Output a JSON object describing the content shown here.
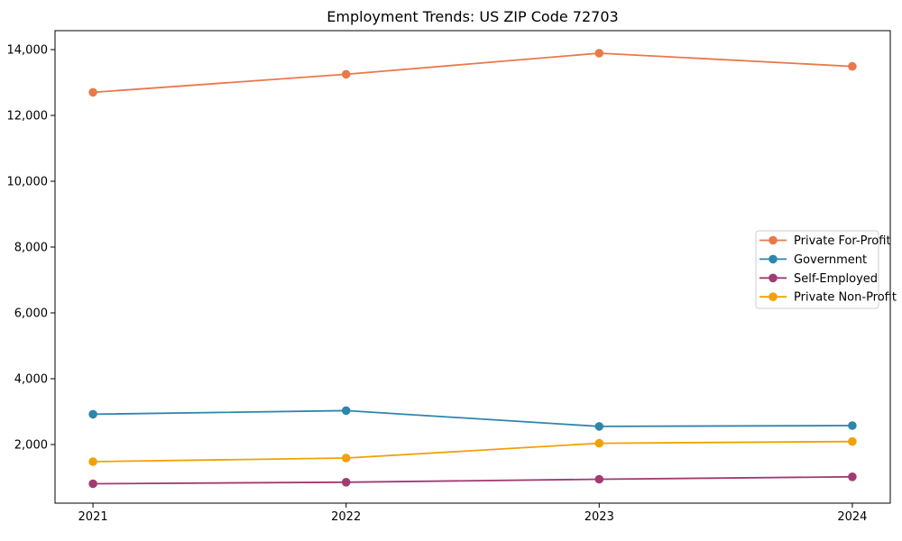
{
  "chart_data": {
    "type": "line",
    "title": "Employment Trends: US ZIP Code 72703",
    "xlabel": "",
    "ylabel": "",
    "x": [
      2021,
      2022,
      2023,
      2024
    ],
    "xtick_labels": [
      "2021",
      "2022",
      "2023",
      "2024"
    ],
    "yticks": [
      2000,
      4000,
      6000,
      8000,
      10000,
      12000,
      14000
    ],
    "ytick_labels": [
      "2,000",
      "4,000",
      "6,000",
      "8,000",
      "10,000",
      "12,000",
      "14,000"
    ],
    "xlim": [
      2020.85,
      2024.15
    ],
    "ylim": [
      220,
      14575
    ],
    "grid": false,
    "legend_position": "center right",
    "marker": "o",
    "series": [
      {
        "name": "Private For-Profit",
        "color": "#E8794A",
        "values": [
          12700,
          13250,
          13890,
          13490
        ]
      },
      {
        "name": "Government",
        "color": "#2E86AB",
        "values": [
          2920,
          3030,
          2550,
          2575
        ]
      },
      {
        "name": "Self-Employed",
        "color": "#A23B72",
        "values": [
          810,
          855,
          945,
          1020
        ]
      },
      {
        "name": "Private Non-Profit",
        "color": "#F2A104",
        "values": [
          1480,
          1590,
          2040,
          2090
        ]
      }
    ],
    "axis_color": "#000000",
    "legend_border_color": "#cccccc",
    "background_color": "#ffffff"
  }
}
